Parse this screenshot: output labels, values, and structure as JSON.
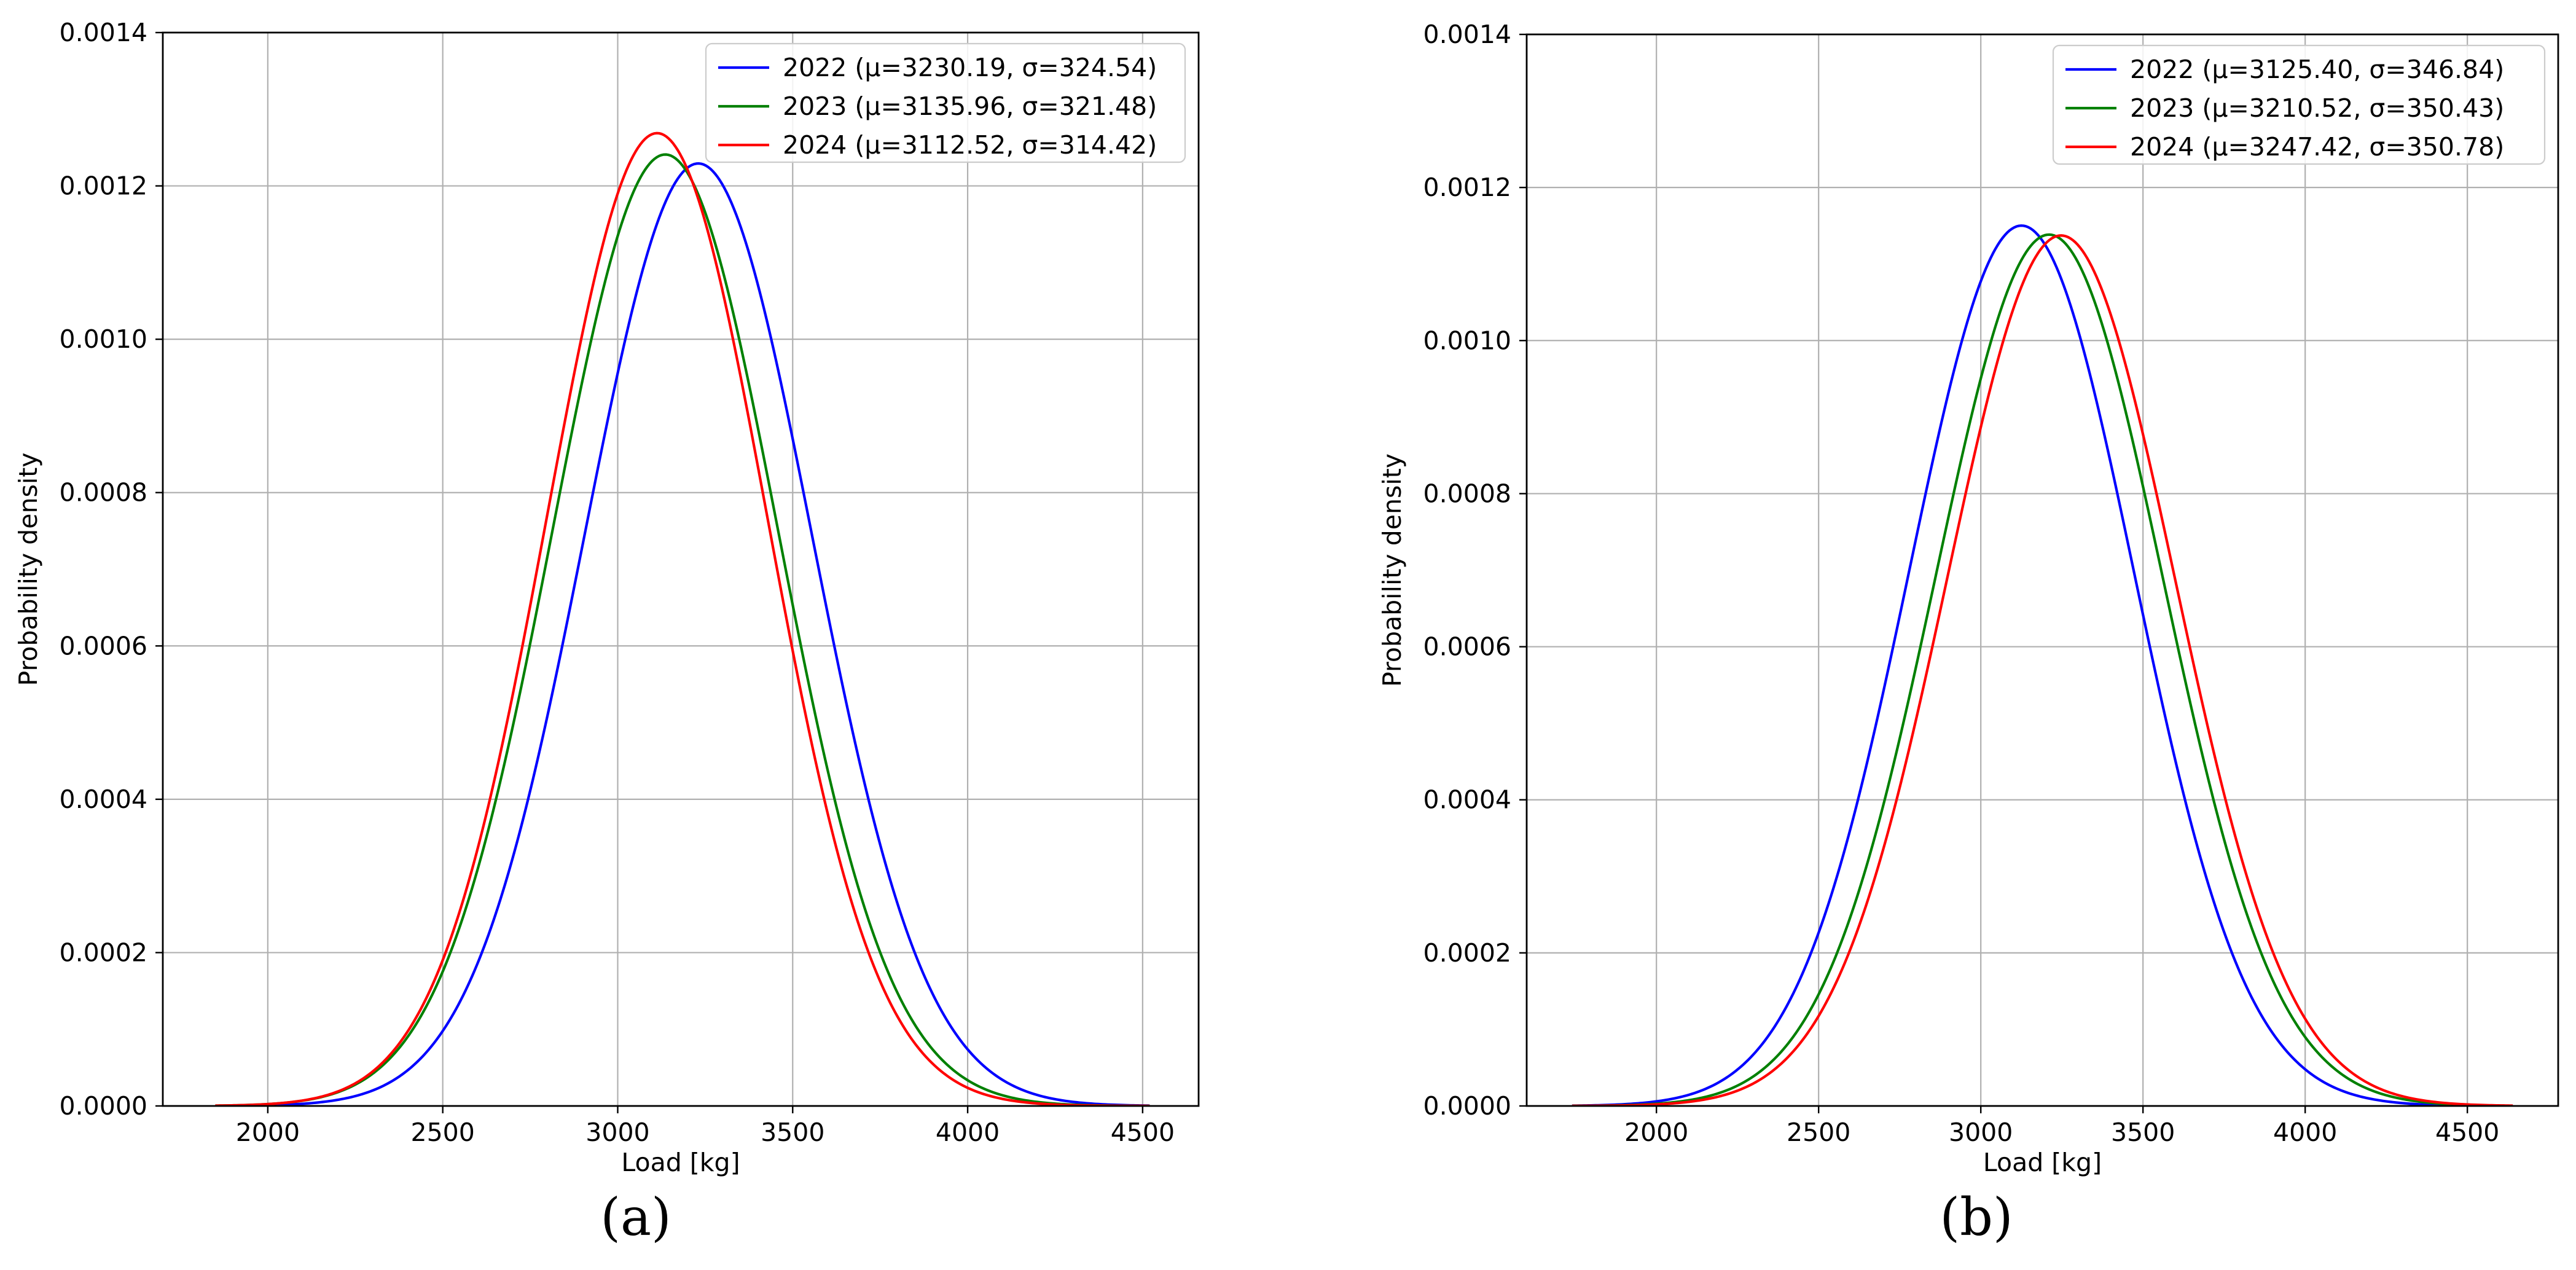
{
  "chart_data": [
    {
      "panel_label": "(a)",
      "type": "line",
      "xlabel": "Load [kg]",
      "ylabel": "Probability density",
      "xlim": [
        1700,
        4660
      ],
      "ylim": [
        0,
        0.0014
      ],
      "xticks": [
        2000,
        2500,
        3000,
        3500,
        4000,
        4500
      ],
      "yticks": [
        0.0,
        0.0002,
        0.0004,
        0.0006,
        0.0008,
        0.001,
        0.0012,
        0.0014
      ],
      "xtick_labels": [
        "2000",
        "2500",
        "3000",
        "3500",
        "4000",
        "4500"
      ],
      "ytick_labels": [
        "0.0000",
        "0.0002",
        "0.0004",
        "0.0006",
        "0.0008",
        "0.0010",
        "0.0012",
        "0.0014"
      ],
      "grid": true,
      "legend_position": "top-right",
      "series": [
        {
          "name": "2022 (μ=3230.19, σ=324.54)",
          "color": "#0000ff",
          "mu": 3230.19,
          "sigma": 324.54,
          "x_range": [
            1850,
            4520
          ]
        },
        {
          "name": "2023 (μ=3135.96, σ=321.48)",
          "color": "#008000",
          "mu": 3135.96,
          "sigma": 321.48,
          "x_range": [
            1850,
            4520
          ]
        },
        {
          "name": "2024 (μ=3112.52, σ=314.42)",
          "color": "#ff0000",
          "mu": 3112.52,
          "sigma": 314.42,
          "x_range": [
            1850,
            4520
          ]
        }
      ]
    },
    {
      "panel_label": "(b)",
      "type": "line",
      "xlabel": "Load [kg]",
      "ylabel": "Probability density",
      "xlim": [
        1600,
        4780
      ],
      "ylim": [
        0,
        0.0014
      ],
      "xticks": [
        2000,
        2500,
        3000,
        3500,
        4000,
        4500
      ],
      "yticks": [
        0.0,
        0.0002,
        0.0004,
        0.0006,
        0.0008,
        0.001,
        0.0012,
        0.0014
      ],
      "xtick_labels": [
        "2000",
        "2500",
        "3000",
        "3500",
        "4000",
        "4500"
      ],
      "ytick_labels": [
        "0.0000",
        "0.0002",
        "0.0004",
        "0.0006",
        "0.0008",
        "0.0010",
        "0.0012",
        "0.0014"
      ],
      "grid": true,
      "legend_position": "top-right",
      "series": [
        {
          "name": "2022 (μ=3125.40, σ=346.84)",
          "color": "#0000ff",
          "mu": 3125.4,
          "sigma": 346.84,
          "x_range": [
            1740,
            4640
          ]
        },
        {
          "name": "2023 (μ=3210.52, σ=350.43)",
          "color": "#008000",
          "mu": 3210.52,
          "sigma": 350.43,
          "x_range": [
            1740,
            4640
          ]
        },
        {
          "name": "2024 (μ=3247.42, σ=350.78)",
          "color": "#ff0000",
          "mu": 3247.42,
          "sigma": 350.78,
          "x_range": [
            1740,
            4640
          ]
        }
      ]
    }
  ]
}
